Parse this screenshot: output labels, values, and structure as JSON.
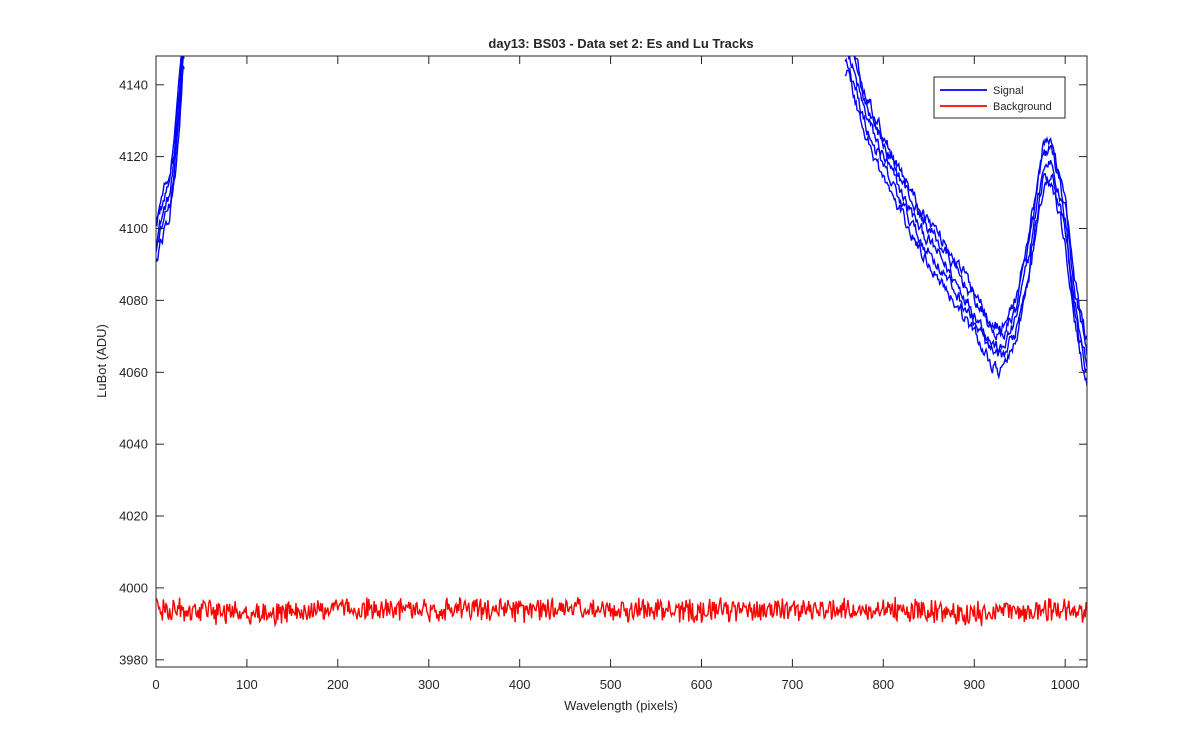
{
  "chart_data": {
    "type": "line",
    "title": "day13: BS03 - Data set 2: Es and Lu Tracks",
    "xlabel": "Wavelength (pixels)",
    "ylabel": "LuBot (ADU)",
    "xlim": [
      0,
      1024
    ],
    "ylim": [
      3978,
      4148
    ],
    "xticks": [
      0,
      100,
      200,
      300,
      400,
      500,
      600,
      700,
      800,
      900,
      1000
    ],
    "yticks": [
      3980,
      4000,
      4020,
      4040,
      4060,
      4080,
      4100,
      4120,
      4140
    ],
    "grid": false,
    "legend": {
      "placement": "top-right",
      "entries": [
        "Signal",
        "Background"
      ]
    },
    "series": [
      {
        "name": "Signal",
        "color": "#0000ff",
        "tracks": 5,
        "x": [
          0,
          5,
          10,
          15,
          20,
          25,
          30,
          760,
          780,
          800,
          820,
          840,
          860,
          880,
          900,
          920,
          930,
          945,
          960,
          975,
          985,
          1000,
          1010,
          1024
        ],
        "y": [
          4097,
          4102,
          4106,
          4109,
          4118,
          4132,
          4152,
          4150,
          4132,
          4120,
          4110,
          4100,
          4093,
          4085,
          4077,
          4068,
          4066,
          4074,
          4092,
          4116,
          4119,
          4102,
          4080,
          4062
        ]
      },
      {
        "name": "Background",
        "color": "#ff0000",
        "x": [
          0,
          100,
          200,
          300,
          400,
          500,
          600,
          700,
          800,
          900,
          1000,
          1024
        ],
        "y": [
          3994,
          3993,
          3994,
          3994,
          3994,
          3994,
          3994,
          3994,
          3994,
          3993,
          3994,
          3993
        ]
      }
    ]
  }
}
